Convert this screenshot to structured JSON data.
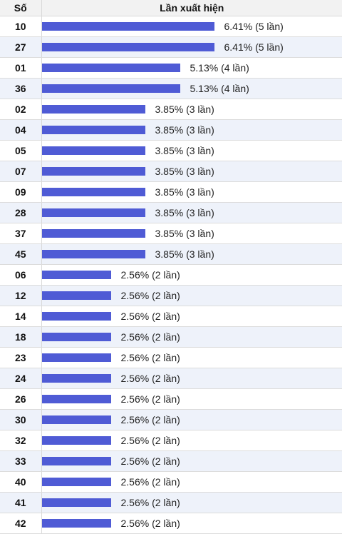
{
  "colors": {
    "bar": "#4f5bd5"
  },
  "chart_data": {
    "type": "bar",
    "orientation": "horizontal",
    "columns": [
      "Số",
      "Lần xuất hiện"
    ],
    "rows": [
      {
        "number": "10",
        "percent": 6.41,
        "count": 5,
        "label": "6.41% (5 lần)"
      },
      {
        "number": "27",
        "percent": 6.41,
        "count": 5,
        "label": "6.41% (5 lần)"
      },
      {
        "number": "01",
        "percent": 5.13,
        "count": 4,
        "label": "5.13% (4 lần)"
      },
      {
        "number": "36",
        "percent": 5.13,
        "count": 4,
        "label": "5.13% (4 lần)"
      },
      {
        "number": "02",
        "percent": 3.85,
        "count": 3,
        "label": "3.85% (3 lần)"
      },
      {
        "number": "04",
        "percent": 3.85,
        "count": 3,
        "label": "3.85% (3 lần)"
      },
      {
        "number": "05",
        "percent": 3.85,
        "count": 3,
        "label": "3.85% (3 lần)"
      },
      {
        "number": "07",
        "percent": 3.85,
        "count": 3,
        "label": "3.85% (3 lần)"
      },
      {
        "number": "09",
        "percent": 3.85,
        "count": 3,
        "label": "3.85% (3 lần)"
      },
      {
        "number": "28",
        "percent": 3.85,
        "count": 3,
        "label": "3.85% (3 lần)"
      },
      {
        "number": "37",
        "percent": 3.85,
        "count": 3,
        "label": "3.85% (3 lần)"
      },
      {
        "number": "45",
        "percent": 3.85,
        "count": 3,
        "label": "3.85% (3 lần)"
      },
      {
        "number": "06",
        "percent": 2.56,
        "count": 2,
        "label": "2.56% (2 lần)"
      },
      {
        "number": "12",
        "percent": 2.56,
        "count": 2,
        "label": "2.56% (2 lần)"
      },
      {
        "number": "14",
        "percent": 2.56,
        "count": 2,
        "label": "2.56% (2 lần)"
      },
      {
        "number": "18",
        "percent": 2.56,
        "count": 2,
        "label": "2.56% (2 lần)"
      },
      {
        "number": "23",
        "percent": 2.56,
        "count": 2,
        "label": "2.56% (2 lần)"
      },
      {
        "number": "24",
        "percent": 2.56,
        "count": 2,
        "label": "2.56% (2 lần)"
      },
      {
        "number": "26",
        "percent": 2.56,
        "count": 2,
        "label": "2.56% (2 lần)"
      },
      {
        "number": "30",
        "percent": 2.56,
        "count": 2,
        "label": "2.56% (2 lần)"
      },
      {
        "number": "32",
        "percent": 2.56,
        "count": 2,
        "label": "2.56% (2 lần)"
      },
      {
        "number": "33",
        "percent": 2.56,
        "count": 2,
        "label": "2.56% (2 lần)"
      },
      {
        "number": "40",
        "percent": 2.56,
        "count": 2,
        "label": "2.56% (2 lần)"
      },
      {
        "number": "41",
        "percent": 2.56,
        "count": 2,
        "label": "2.56% (2 lần)"
      },
      {
        "number": "42",
        "percent": 2.56,
        "count": 2,
        "label": "2.56% (2 lần)"
      }
    ]
  }
}
